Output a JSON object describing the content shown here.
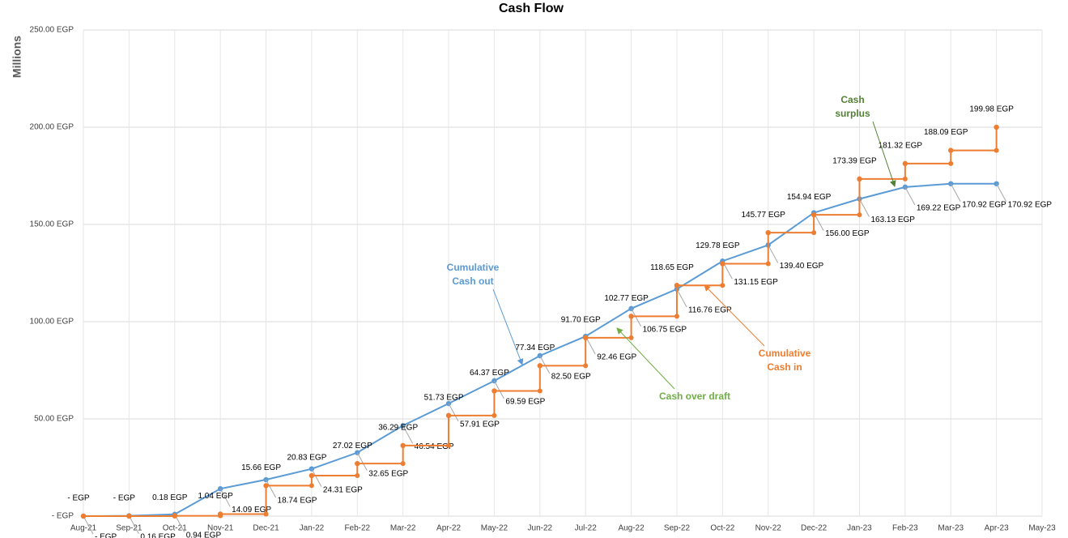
{
  "chart_data": {
    "type": "line",
    "title": "Cash Flow",
    "y_axis_label": "Millions",
    "categories": [
      "Aug-21",
      "Sep-21",
      "Oct-21",
      "Nov-21",
      "Dec-21",
      "Jan-22",
      "Feb-22",
      "Mar-22",
      "Apr-22",
      "May-22",
      "Jun-22",
      "Jul-22",
      "Aug-22",
      "Sep-22",
      "Oct-22",
      "Nov-22",
      "Dec-22",
      "Jan-23",
      "Feb-23",
      "Mar-23",
      "Apr-23",
      "May-23"
    ],
    "ylim": [
      0,
      250
    ],
    "yticks": [
      {
        "value": 0,
        "label": "-   EGP"
      },
      {
        "value": 50,
        "label": "50.00 EGP"
      },
      {
        "value": 100,
        "label": "100.00 EGP"
      },
      {
        "value": 150,
        "label": "150.00 EGP"
      },
      {
        "value": 200,
        "label": "200.00 EGP"
      },
      {
        "value": 250,
        "label": "250.00 EGP"
      }
    ],
    "grid": true,
    "series": [
      {
        "name": "Cumulative Cash out",
        "color": "#5b9bd5",
        "step": false,
        "values": [
          0,
          0.16,
          0.94,
          14.09,
          18.74,
          24.31,
          32.65,
          46.54,
          57.91,
          69.59,
          82.5,
          92.46,
          106.75,
          116.76,
          131.15,
          139.4,
          156.0,
          163.13,
          169.22,
          170.92,
          170.92,
          null
        ],
        "value_labels": [
          "-   EGP",
          "0.16 EGP",
          "0.94 EGP",
          "14.09 EGP",
          "18.74 EGP",
          "24.31 EGP",
          "32.65 EGP",
          "46.54 EGP",
          "57.91 EGP",
          "69.59 EGP",
          "82.50 EGP",
          "92.46 EGP",
          "106.75 EGP",
          "116.76 EGP",
          "131.15 EGP",
          "139.40 EGP",
          "156.00 EGP",
          "163.13 EGP",
          "169.22 EGP",
          "170.92 EGP",
          "170.92 EGP",
          null
        ]
      },
      {
        "name": "Cumulative Cash in",
        "color": "#ed7d31",
        "step": true,
        "values": [
          0,
          0,
          0.18,
          1.04,
          15.66,
          20.83,
          27.02,
          36.29,
          51.73,
          64.37,
          77.34,
          91.7,
          102.77,
          118.65,
          129.78,
          145.77,
          154.94,
          173.39,
          181.32,
          188.09,
          199.98,
          null
        ],
        "value_labels": [
          "-   EGP",
          "-   EGP",
          "0.18 EGP",
          "1.04 EGP",
          "15.66 EGP",
          "20.83 EGP",
          "27.02 EGP",
          "36.29 EGP",
          "51.73 EGP",
          "64.37 EGP",
          "77.34 EGP",
          "91.70 EGP",
          "102.77 EGP",
          "118.65 EGP",
          "129.78 EGP",
          "145.77 EGP",
          "154.94 EGP",
          "173.39 EGP",
          "181.32 EGP",
          "188.09 EGP",
          "199.98 EGP",
          null
        ]
      }
    ],
    "annotations": [
      {
        "text": "Cumulative Cash out",
        "color": "#5b9bd5"
      },
      {
        "text": "Cumulative Cash in",
        "color": "#ed7d31"
      },
      {
        "text": "Cash over draft",
        "color": "#70ad47"
      },
      {
        "text": "Cash surplus",
        "color": "#548235"
      }
    ]
  }
}
